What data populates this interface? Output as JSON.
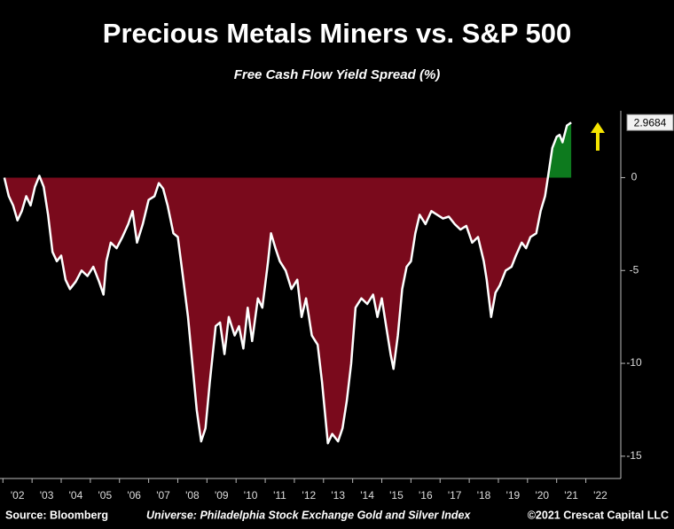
{
  "chart_data": {
    "type": "area",
    "title": "Precious Metals Miners vs. S&P 500",
    "subtitle": "Free Cash Flow Yield Spread (%)",
    "source": "Source: Bloomberg",
    "note": "Universe: Philadelphia Stock Exchange Gold and Silver Index",
    "copyright": "©2021 Crescat Capital LLC",
    "line_color": "#ffffff",
    "fill_negative": "#7a0a1c",
    "fill_positive": "#0d7a1e",
    "x": [
      2002.05,
      2002.2,
      2002.35,
      2002.5,
      2002.65,
      2002.8,
      2002.95,
      2003.1,
      2003.25,
      2003.4,
      2003.55,
      2003.7,
      2003.85,
      2004.0,
      2004.15,
      2004.3,
      2004.5,
      2004.7,
      2004.9,
      2005.1,
      2005.3,
      2005.45,
      2005.55,
      2005.7,
      2005.9,
      2006.1,
      2006.3,
      2006.45,
      2006.6,
      2006.8,
      2007.0,
      2007.2,
      2007.35,
      2007.5,
      2007.65,
      2007.85,
      2008.0,
      2008.15,
      2008.35,
      2008.5,
      2008.65,
      2008.8,
      2008.95,
      2009.1,
      2009.3,
      2009.45,
      2009.6,
      2009.75,
      2009.95,
      2010.1,
      2010.25,
      2010.4,
      2010.55,
      2010.75,
      2010.9,
      2011.1,
      2011.2,
      2011.35,
      2011.5,
      2011.7,
      2011.9,
      2012.1,
      2012.25,
      2012.4,
      2012.6,
      2012.8,
      2012.95,
      2013.15,
      2013.3,
      2013.5,
      2013.65,
      2013.8,
      2013.95,
      2014.1,
      2014.3,
      2014.5,
      2014.7,
      2014.85,
      2015.0,
      2015.15,
      2015.3,
      2015.4,
      2015.55,
      2015.7,
      2015.85,
      2016.0,
      2016.15,
      2016.3,
      2016.5,
      2016.7,
      2016.9,
      2017.1,
      2017.3,
      2017.5,
      2017.7,
      2017.9,
      2018.1,
      2018.3,
      2018.5,
      2018.6,
      2018.75,
      2018.9,
      2019.05,
      2019.25,
      2019.45,
      2019.6,
      2019.8,
      2019.95,
      2020.1,
      2020.3,
      2020.45,
      2020.6,
      2020.7,
      2020.85,
      2021.0,
      2021.1,
      2021.2,
      2021.35,
      2021.5
    ],
    "values": [
      0,
      -1.0,
      -1.5,
      -2.3,
      -1.8,
      -1.0,
      -1.5,
      -0.5,
      0.1,
      -0.5,
      -2.0,
      -4.0,
      -4.5,
      -4.2,
      -5.5,
      -6.0,
      -5.6,
      -5.0,
      -5.3,
      -4.8,
      -5.6,
      -6.3,
      -4.5,
      -3.5,
      -3.8,
      -3.2,
      -2.5,
      -1.8,
      -3.5,
      -2.5,
      -1.2,
      -1.0,
      -0.3,
      -0.6,
      -1.5,
      -3.0,
      -3.2,
      -5.0,
      -7.5,
      -10.0,
      -12.5,
      -14.2,
      -13.5,
      -11.0,
      -8.0,
      -7.8,
      -9.5,
      -7.5,
      -8.5,
      -8.0,
      -9.2,
      -7.0,
      -8.8,
      -6.5,
      -7.0,
      -4.5,
      -3.0,
      -3.8,
      -4.5,
      -5.0,
      -6.0,
      -5.5,
      -7.5,
      -6.5,
      -8.5,
      -9.0,
      -11.0,
      -14.3,
      -13.8,
      -14.2,
      -13.5,
      -12.0,
      -10.0,
      -7.0,
      -6.5,
      -6.8,
      -6.3,
      -7.5,
      -6.5,
      -8.0,
      -9.5,
      -10.3,
      -8.5,
      -6.0,
      -4.8,
      -4.5,
      -3.0,
      -2.0,
      -2.5,
      -1.8,
      -2.0,
      -2.2,
      -2.1,
      -2.5,
      -2.8,
      -2.6,
      -3.5,
      -3.2,
      -4.5,
      -5.5,
      -7.5,
      -6.2,
      -5.8,
      -5.0,
      -4.8,
      -4.2,
      -3.5,
      -3.8,
      -3.2,
      -3.0,
      -1.8,
      -1.0,
      0,
      1.6,
      2.2,
      2.3,
      1.9,
      2.8,
      2.9684
    ],
    "xlim": [
      2001.9,
      2023.2
    ],
    "ylim": [
      -16.2,
      3.6
    ],
    "yticks": [
      -15,
      -10,
      -5,
      0
    ],
    "xticks": [
      {
        "value": 2002,
        "label": "'02"
      },
      {
        "value": 2003,
        "label": "'03"
      },
      {
        "value": 2004,
        "label": "'04"
      },
      {
        "value": 2005,
        "label": "'05"
      },
      {
        "value": 2006,
        "label": "'06"
      },
      {
        "value": 2007,
        "label": "'07"
      },
      {
        "value": 2008,
        "label": "'08"
      },
      {
        "value": 2009,
        "label": "'09"
      },
      {
        "value": 2010,
        "label": "'10"
      },
      {
        "value": 2011,
        "label": "'11"
      },
      {
        "value": 2012,
        "label": "'12"
      },
      {
        "value": 2013,
        "label": "'13"
      },
      {
        "value": 2014,
        "label": "'14"
      },
      {
        "value": 2015,
        "label": "'15"
      },
      {
        "value": 2016,
        "label": "'16"
      },
      {
        "value": 2017,
        "label": "'17"
      },
      {
        "value": 2018,
        "label": "'18"
      },
      {
        "value": 2019,
        "label": "'19"
      },
      {
        "value": 2020,
        "label": "'20"
      },
      {
        "value": 2021,
        "label": "'21"
      },
      {
        "value": 2022,
        "label": "'22"
      }
    ]
  }
}
